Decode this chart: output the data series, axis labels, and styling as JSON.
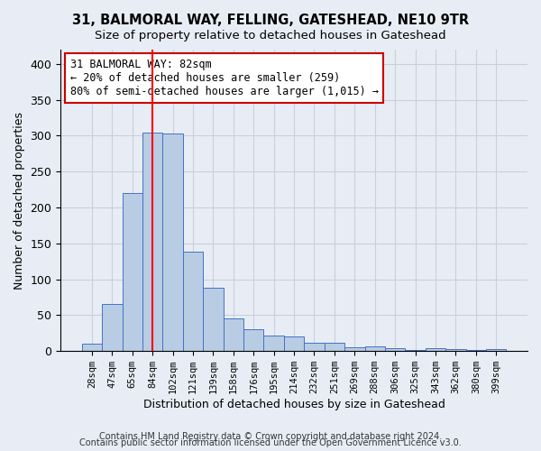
{
  "title": "31, BALMORAL WAY, FELLING, GATESHEAD, NE10 9TR",
  "subtitle": "Size of property relative to detached houses in Gateshead",
  "xlabel": "Distribution of detached houses by size in Gateshead",
  "ylabel": "Number of detached properties",
  "bar_labels": [
    "28sqm",
    "47sqm",
    "65sqm",
    "84sqm",
    "102sqm",
    "121sqm",
    "139sqm",
    "158sqm",
    "176sqm",
    "195sqm",
    "214sqm",
    "232sqm",
    "251sqm",
    "269sqm",
    "288sqm",
    "306sqm",
    "325sqm",
    "343sqm",
    "362sqm",
    "380sqm",
    "399sqm"
  ],
  "bar_values": [
    10,
    65,
    220,
    305,
    303,
    138,
    88,
    46,
    31,
    22,
    21,
    11,
    11,
    5,
    6,
    4,
    2,
    4,
    3,
    2,
    3
  ],
  "bar_color": "#b8cce4",
  "bar_edgecolor": "#4472c4",
  "vline_color": "#ff0000",
  "vline_pos": 3.0,
  "annotation_text": "31 BALMORAL WAY: 82sqm\n← 20% of detached houses are smaller (259)\n80% of semi-detached houses are larger (1,015) →",
  "annotation_box_edgecolor": "#cc0000",
  "ylim": [
    0,
    420
  ],
  "yticks": [
    0,
    50,
    100,
    150,
    200,
    250,
    300,
    350,
    400
  ],
  "grid_color": "#c8d0dc",
  "footer1": "Contains HM Land Registry data © Crown copyright and database right 2024.",
  "footer2": "Contains public sector information licensed under the Open Government Licence v3.0.",
  "bg_color": "#e8edf5",
  "plot_bg_color": "#e8edf5"
}
